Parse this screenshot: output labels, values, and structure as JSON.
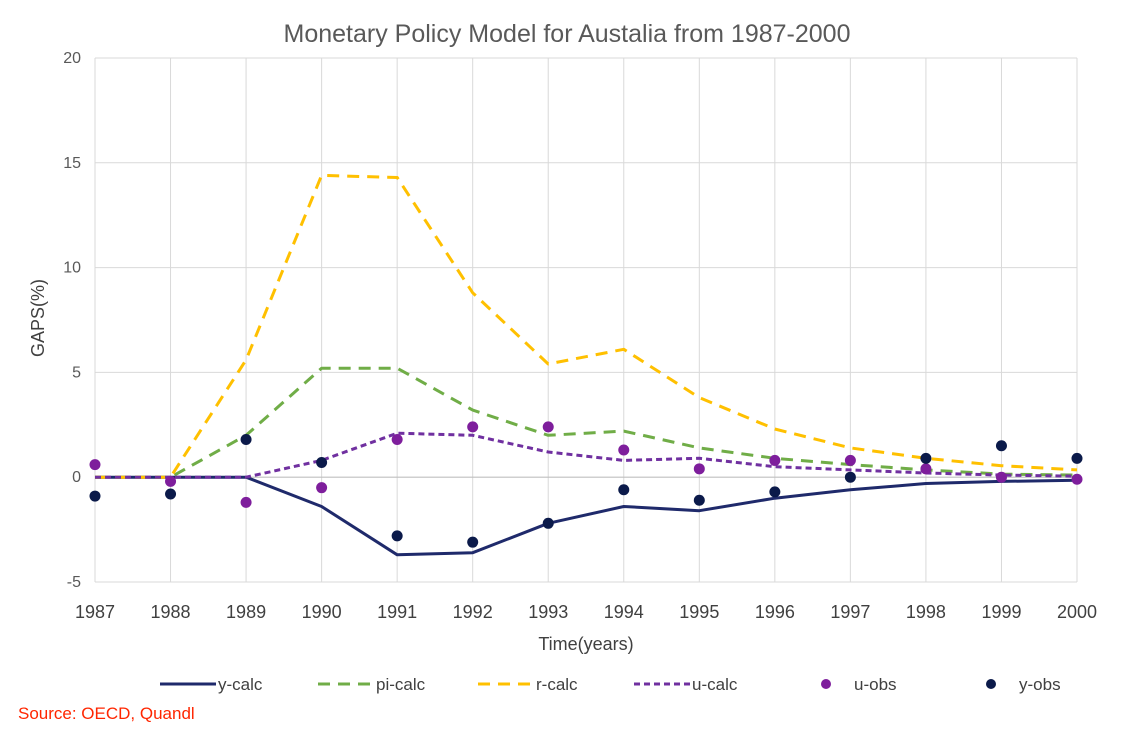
{
  "chart_data": {
    "type": "line",
    "title": "Monetary Policy Model for Austalia from 1987-2000",
    "xlabel": "Time(years)",
    "ylabel": "GAPS(%)",
    "ylim": [
      -5,
      20
    ],
    "yticks": [
      -5,
      0,
      5,
      10,
      15,
      20
    ],
    "x": [
      1987,
      1988,
      1989,
      1990,
      1991,
      1992,
      1993,
      1994,
      1995,
      1996,
      1997,
      1998,
      1999,
      2000
    ],
    "xtick_labels": [
      "1987",
      "1988",
      "1989",
      "1990",
      "1991",
      "1992",
      "1993",
      "1994",
      "1995",
      "1996",
      "1997",
      "1998",
      "1999",
      "2000"
    ],
    "grid": true,
    "legend_position": "bottom",
    "series": [
      {
        "name": "y-calc",
        "style": "solid",
        "color": "#1f2a6b",
        "values": [
          0,
          0,
          0,
          -1.4,
          -3.7,
          -3.6,
          -2.2,
          -1.4,
          -1.6,
          -1.0,
          -0.6,
          -0.3,
          -0.2,
          -0.15
        ]
      },
      {
        "name": "pi-calc",
        "style": "dashed",
        "color": "#70ad47",
        "values": [
          0,
          0,
          2.0,
          5.2,
          5.2,
          3.2,
          2.0,
          2.2,
          1.4,
          0.9,
          0.6,
          0.35,
          0.15,
          0.1
        ]
      },
      {
        "name": "r-calc",
        "style": "dashed",
        "color": "#ffc000",
        "values": [
          0,
          0,
          5.6,
          14.4,
          14.3,
          8.8,
          5.4,
          6.1,
          3.8,
          2.3,
          1.4,
          0.9,
          0.55,
          0.35
        ]
      },
      {
        "name": "u-calc",
        "style": "dotted",
        "color": "#7030a0",
        "values": [
          0,
          0,
          0,
          0.8,
          2.1,
          2.0,
          1.2,
          0.8,
          0.9,
          0.5,
          0.35,
          0.2,
          0.1,
          0.05
        ]
      },
      {
        "name": "u-obs",
        "style": "marker",
        "color": "#7e1e9c",
        "values": [
          0.6,
          -0.2,
          -1.2,
          -0.5,
          1.8,
          2.4,
          2.4,
          1.3,
          0.4,
          0.8,
          0.8,
          0.4,
          0.0,
          -0.1
        ]
      },
      {
        "name": "y-obs",
        "style": "marker",
        "color": "#0b1a4a",
        "values": [
          -0.9,
          -0.8,
          1.8,
          0.7,
          -2.8,
          -3.1,
          -2.2,
          -0.6,
          -1.1,
          -0.7,
          0.0,
          0.9,
          1.5,
          0.9
        ]
      }
    ]
  },
  "source": "Source: OECD, Quandl"
}
